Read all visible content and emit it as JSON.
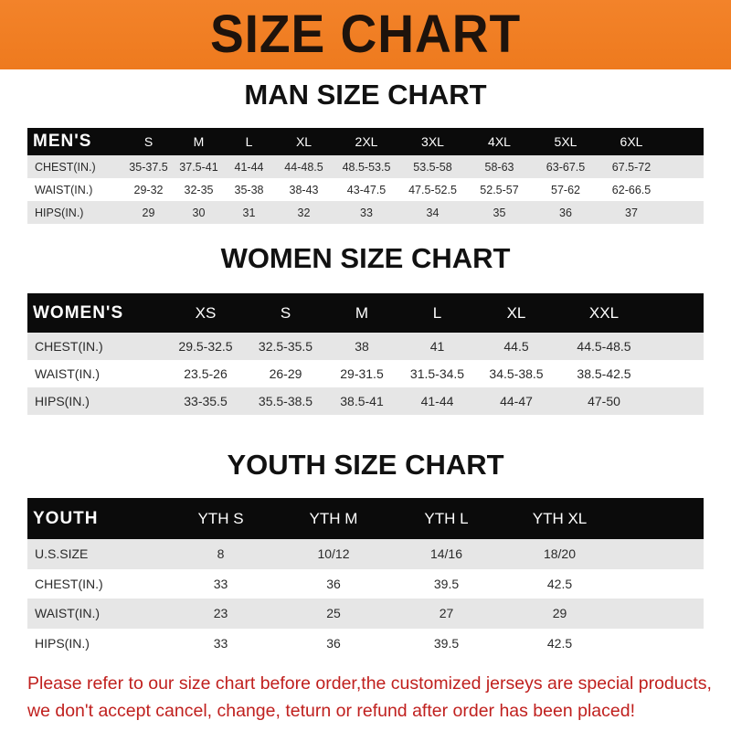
{
  "header": {
    "title": "SIZE CHART",
    "color": "#f07f22"
  },
  "men": {
    "title": "MAN SIZE CHART",
    "columns": [
      "MEN'S",
      "S",
      "M",
      "L",
      "XL",
      "2XL",
      "3XL",
      "4XL",
      "5XL",
      "6XL"
    ],
    "rows": [
      [
        "CHEST(IN.)",
        "35-37.5",
        "37.5-41",
        "41-44",
        "44-48.5",
        "48.5-53.5",
        "53.5-58",
        "58-63",
        "63-67.5",
        "67.5-72"
      ],
      [
        "WAIST(IN.)",
        "29-32",
        "32-35",
        "35-38",
        "38-43",
        "43-47.5",
        "47.5-52.5",
        "52.5-57",
        "57-62",
        "62-66.5"
      ],
      [
        "HIPS(IN.)",
        "29",
        "30",
        "31",
        "32",
        "33",
        "34",
        "35",
        "36",
        "37"
      ]
    ]
  },
  "women": {
    "title": "WOMEN SIZE CHART",
    "columns": [
      "WOMEN'S",
      "XS",
      "S",
      "M",
      "L",
      "XL",
      "XXL"
    ],
    "rows": [
      [
        "CHEST(IN.)",
        "29.5-32.5",
        "32.5-35.5",
        "38",
        "41",
        "44.5",
        "44.5-48.5"
      ],
      [
        "WAIST(IN.)",
        "23.5-26",
        "26-29",
        "29-31.5",
        "31.5-34.5",
        "34.5-38.5",
        "38.5-42.5"
      ],
      [
        "HIPS(IN.)",
        "33-35.5",
        "35.5-38.5",
        "38.5-41",
        "41-44",
        "44-47",
        "47-50"
      ]
    ]
  },
  "youth": {
    "title": "YOUTH SIZE CHART",
    "columns": [
      "YOUTH",
      "YTH S",
      "YTH M",
      "YTH L",
      "YTH XL"
    ],
    "rows": [
      [
        "U.S.SIZE",
        "8",
        "10/12",
        "14/16",
        "18/20"
      ],
      [
        "CHEST(IN.)",
        "33",
        "36",
        "39.5",
        "42.5"
      ],
      [
        "WAIST(IN.)",
        "23",
        "25",
        "27",
        "29"
      ],
      [
        "HIPS(IN.)",
        "33",
        "36",
        "39.5",
        "42.5"
      ]
    ]
  },
  "notice": {
    "line1": "Please refer to our size chart before order,the customized jerseys are special products,",
    "line2": "we don't accept cancel, change, teturn or refund after order has been placed!",
    "color": "#c0201e"
  }
}
